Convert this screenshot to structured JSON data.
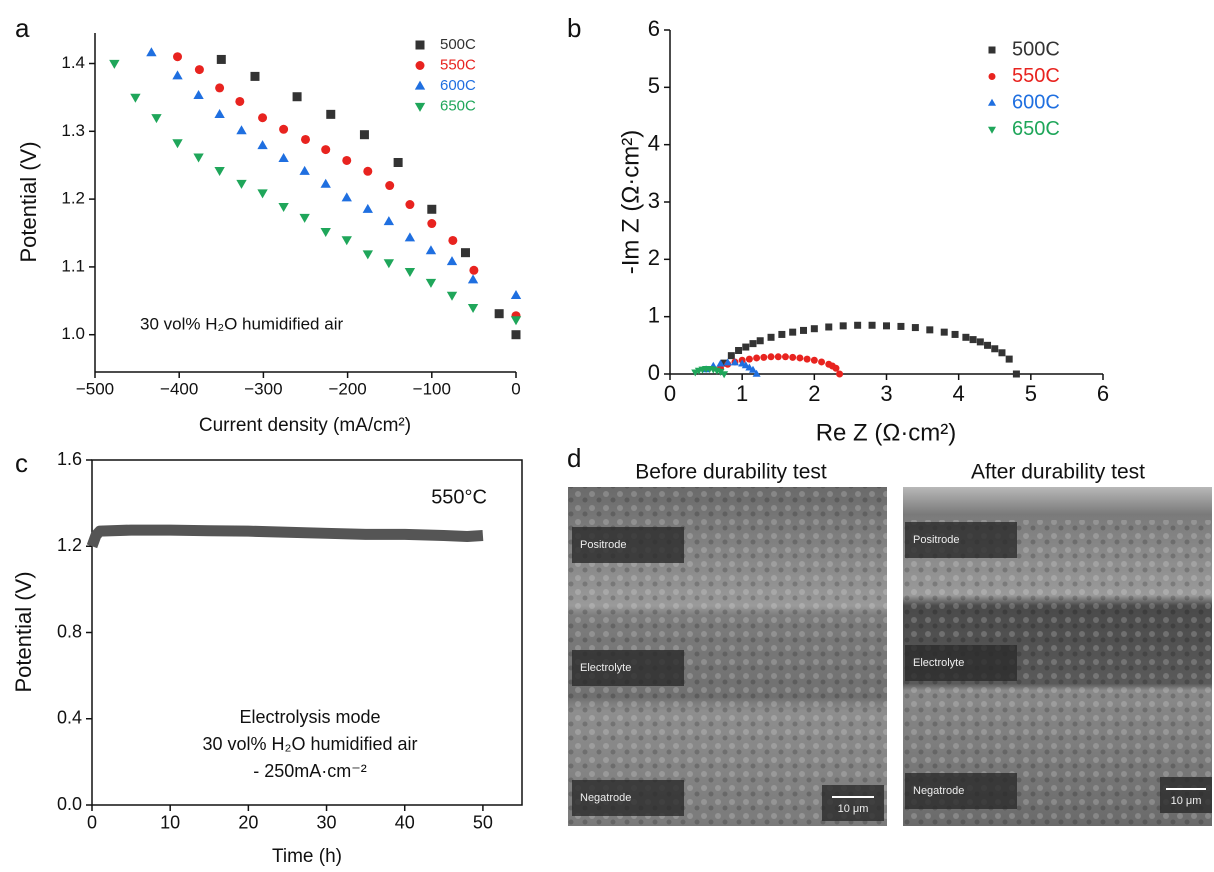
{
  "chart_data": [
    {
      "type": "scatter",
      "panel": "a",
      "xlabel": "Current density (mA/cm²)",
      "ylabel": "Potential (V)",
      "annotations": [
        "30 vol% H₂O humidified air"
      ],
      "xlim": [
        -500,
        0
      ],
      "ylim": [
        0.945,
        1.445
      ],
      "xticks": [
        {
          "value": -500,
          "label": "−500"
        },
        {
          "value": -400,
          "label": "−400"
        },
        {
          "value": -300,
          "label": "−300"
        },
        {
          "value": -200,
          "label": "−200"
        },
        {
          "value": -100,
          "label": "−100"
        },
        0
      ],
      "yticks": [
        {
          "value": 1.0,
          "label": "1.0"
        },
        1.1,
        1.2,
        1.3,
        1.4
      ],
      "legend": "upper right",
      "series": [
        {
          "name": "500C",
          "color": "#333333",
          "marker": "square",
          "x": [
            -350,
            -310,
            -260,
            -220,
            -180,
            -140,
            -100,
            -60,
            -20,
            0
          ],
          "values": [
            1.406,
            1.381,
            1.351,
            1.325,
            1.295,
            1.254,
            1.185,
            1.121,
            1.031,
            1.0
          ]
        },
        {
          "name": "550C",
          "color": "#e8231f",
          "marker": "circle",
          "x": [
            -402,
            -376,
            -352,
            -328,
            -301,
            -276,
            -250,
            -226,
            -201,
            -176,
            -150,
            -126,
            -100,
            -75,
            -50,
            0
          ],
          "values": [
            1.41,
            1.391,
            1.364,
            1.344,
            1.32,
            1.303,
            1.288,
            1.273,
            1.257,
            1.241,
            1.22,
            1.192,
            1.164,
            1.139,
            1.095,
            1.028
          ]
        },
        {
          "name": "600C",
          "color": "#1f6fe0",
          "marker": "triangle-up",
          "x": [
            -433,
            -402,
            -377,
            -352,
            -326,
            -301,
            -276,
            -251,
            -226,
            -201,
            -176,
            -151,
            -126,
            -101,
            -76,
            -51,
            0
          ],
          "values": [
            1.416,
            1.382,
            1.353,
            1.325,
            1.301,
            1.279,
            1.26,
            1.241,
            1.222,
            1.202,
            1.185,
            1.167,
            1.143,
            1.124,
            1.108,
            1.081,
            1.058
          ]
        },
        {
          "name": "650C",
          "color": "#1fa65a",
          "marker": "triangle-down",
          "x": [
            -477,
            -452,
            -427,
            -402,
            -377,
            -352,
            -326,
            -301,
            -276,
            -251,
            -226,
            -201,
            -176,
            -151,
            -126,
            -101,
            -76,
            -51,
            0
          ],
          "values": [
            1.4,
            1.35,
            1.32,
            1.283,
            1.262,
            1.242,
            1.223,
            1.209,
            1.189,
            1.173,
            1.152,
            1.14,
            1.119,
            1.106,
            1.093,
            1.077,
            1.058,
            1.04,
            1.022
          ]
        }
      ]
    },
    {
      "type": "scatter",
      "panel": "b",
      "xlabel": "Re Z (Ω·cm²)",
      "ylabel": "-Im Z (Ω·cm²)",
      "xlim": [
        0,
        6
      ],
      "ylim": [
        0,
        6
      ],
      "xticks": [
        0,
        1,
        2,
        3,
        4,
        5,
        6
      ],
      "yticks": [
        0,
        1,
        2,
        3,
        4,
        5,
        6
      ],
      "legend": "upper right",
      "series": [
        {
          "name": "500C",
          "color": "#333333",
          "marker": "square",
          "x": [
            0.75,
            0.85,
            0.95,
            1.05,
            1.15,
            1.25,
            1.4,
            1.55,
            1.7,
            1.85,
            2.0,
            2.2,
            2.4,
            2.6,
            2.8,
            3.0,
            3.2,
            3.4,
            3.6,
            3.8,
            3.95,
            4.1,
            4.2,
            4.3,
            4.4,
            4.5,
            4.6,
            4.7,
            4.8
          ],
          "values": [
            0.19,
            0.32,
            0.41,
            0.47,
            0.53,
            0.58,
            0.64,
            0.69,
            0.73,
            0.76,
            0.79,
            0.82,
            0.84,
            0.85,
            0.85,
            0.84,
            0.83,
            0.81,
            0.77,
            0.73,
            0.69,
            0.64,
            0.6,
            0.56,
            0.5,
            0.44,
            0.37,
            0.26,
            0.0
          ]
        },
        {
          "name": "550C",
          "color": "#e8231f",
          "marker": "circle",
          "x": [
            0.7,
            0.8,
            0.9,
            1.0,
            1.1,
            1.2,
            1.3,
            1.4,
            1.5,
            1.6,
            1.7,
            1.8,
            1.9,
            2.0,
            2.1,
            2.2,
            2.25,
            2.3,
            2.35
          ],
          "values": [
            0.1,
            0.17,
            0.21,
            0.24,
            0.26,
            0.28,
            0.29,
            0.3,
            0.3,
            0.3,
            0.29,
            0.28,
            0.26,
            0.24,
            0.21,
            0.17,
            0.14,
            0.1,
            0.0
          ]
        },
        {
          "name": "600C",
          "color": "#1f6fe0",
          "marker": "triangle-up",
          "x": [
            0.5,
            0.6,
            0.7,
            0.8,
            0.9,
            1.0,
            1.05,
            1.1,
            1.15,
            1.2
          ],
          "values": [
            0.08,
            0.14,
            0.18,
            0.2,
            0.2,
            0.18,
            0.15,
            0.11,
            0.07,
            0.0
          ]
        },
        {
          "name": "650C",
          "color": "#1fa65a",
          "marker": "triangle-down",
          "x": [
            0.35,
            0.4,
            0.45,
            0.5,
            0.55,
            0.6,
            0.65,
            0.7,
            0.75
          ],
          "values": [
            0.03,
            0.06,
            0.08,
            0.09,
            0.09,
            0.08,
            0.06,
            0.04,
            0.0
          ]
        }
      ]
    },
    {
      "type": "line",
      "panel": "c",
      "xlabel": "Time (h)",
      "ylabel": "Potential (V)",
      "annotations": [
        "550°C",
        "Electrolysis mode",
        "30 vol% H₂O humidified air",
        "- 250mA·cm⁻²"
      ],
      "xlim": [
        0,
        55
      ],
      "ylim": [
        0,
        1.6
      ],
      "xticks": [
        0,
        10,
        20,
        30,
        40,
        50
      ],
      "yticks": [
        {
          "value": 0,
          "label": "0.0"
        },
        0.4,
        0.8,
        1.2,
        1.6
      ],
      "x": [
        0,
        0.5,
        1,
        5,
        10,
        15,
        20,
        25,
        30,
        35,
        40,
        45,
        48,
        50
      ],
      "series": [
        {
          "color": "#555555",
          "values": [
            1.2,
            1.25,
            1.27,
            1.275,
            1.275,
            1.272,
            1.27,
            1.265,
            1.26,
            1.255,
            1.255,
            1.25,
            1.245,
            1.25
          ]
        }
      ]
    }
  ],
  "panel_d": {
    "panel": "d",
    "images": [
      {
        "title": "Before durability test",
        "labels": [
          "Positrode",
          "Electrolyte",
          "Negatrode"
        ],
        "scale": "10 μm"
      },
      {
        "title": "After durability test",
        "labels": [
          "Positrode",
          "Electrolyte",
          "Negatrode"
        ],
        "scale": "10 μm"
      }
    ]
  }
}
